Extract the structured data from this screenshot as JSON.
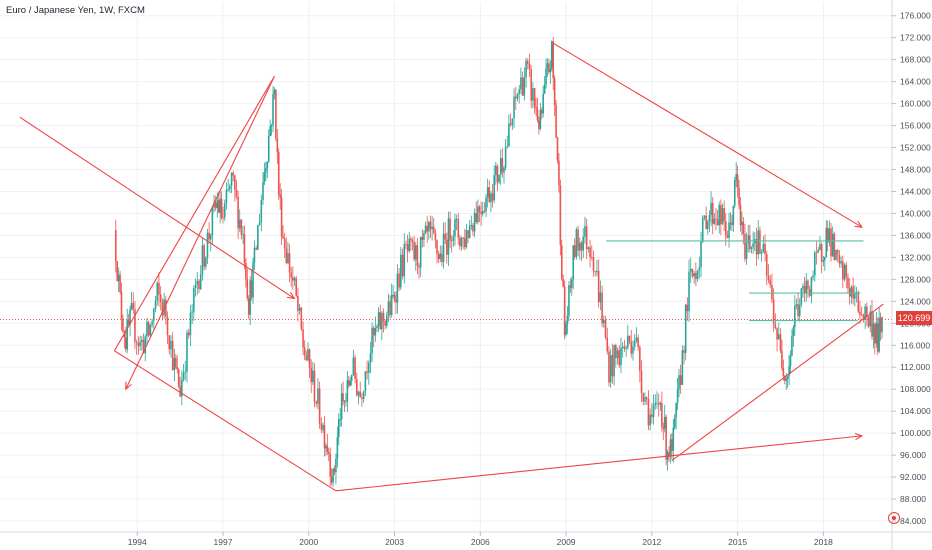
{
  "header": {
    "title": "Euro / Japanese Yen, 1W, FXCM"
  },
  "price_badge": {
    "value": "120.699"
  },
  "colors": {
    "up": "#26a69a",
    "down": "#ef5350",
    "drawing": "#ef4444",
    "axis_text": "#4a4f5c",
    "grid": "#eef0f3",
    "hline": "#5bbfa6"
  },
  "chart_data": {
    "type": "candlestick",
    "title": "Euro / Japanese Yen, 1W, FXCM",
    "xlim": [
      1989.2,
      2020.4
    ],
    "ylim": [
      82,
      178.5
    ],
    "y_ticks": [
      84,
      88,
      92,
      96,
      100,
      104,
      108,
      112,
      116,
      120,
      124,
      128,
      132,
      136,
      140,
      144,
      148,
      152,
      156,
      160,
      164,
      168,
      172,
      176
    ],
    "x_ticks": [
      1994,
      1997,
      2000,
      2003,
      2006,
      2009,
      2012,
      2015,
      2018
    ],
    "last_price": 120.699,
    "price_path": [
      [
        1993.2,
        137
      ],
      [
        1993.4,
        124
      ],
      [
        1993.6,
        117
      ],
      [
        1993.8,
        121
      ],
      [
        1994.1,
        116
      ],
      [
        1994.4,
        118
      ],
      [
        1994.7,
        125
      ],
      [
        1995.0,
        122
      ],
      [
        1995.3,
        112
      ],
      [
        1995.5,
        108
      ],
      [
        1995.8,
        118
      ],
      [
        1996.1,
        128
      ],
      [
        1996.4,
        134
      ],
      [
        1996.8,
        142
      ],
      [
        1997.0,
        139
      ],
      [
        1997.3,
        146
      ],
      [
        1997.7,
        136
      ],
      [
        1997.9,
        124
      ],
      [
        1998.1,
        131
      ],
      [
        1998.4,
        146
      ],
      [
        1998.6,
        154
      ],
      [
        1998.8,
        162
      ],
      [
        1998.95,
        144
      ],
      [
        1999.1,
        136
      ],
      [
        1999.5,
        126
      ],
      [
        1999.8,
        116
      ],
      [
        2000.2,
        108
      ],
      [
        2000.5,
        101
      ],
      [
        2000.7,
        97
      ],
      [
        2000.85,
        91
      ],
      [
        2001.1,
        104
      ],
      [
        2001.3,
        106
      ],
      [
        2001.5,
        112
      ],
      [
        2001.8,
        107
      ],
      [
        2002.1,
        115
      ],
      [
        2002.5,
        120
      ],
      [
        2002.9,
        123
      ],
      [
        2003.1,
        128
      ],
      [
        2003.4,
        133
      ],
      [
        2003.8,
        132
      ],
      [
        2004.2,
        136
      ],
      [
        2004.6,
        132
      ],
      [
        2005.0,
        138
      ],
      [
        2005.4,
        135
      ],
      [
        2005.8,
        140
      ],
      [
        2006.2,
        143
      ],
      [
        2006.6,
        147
      ],
      [
        2007.0,
        154
      ],
      [
        2007.3,
        162
      ],
      [
        2007.6,
        166
      ],
      [
        2007.9,
        160
      ],
      [
        2008.1,
        156
      ],
      [
        2008.3,
        164
      ],
      [
        2008.5,
        169
      ],
      [
        2008.7,
        150
      ],
      [
        2008.95,
        118
      ],
      [
        2009.1,
        124
      ],
      [
        2009.3,
        134
      ],
      [
        2009.6,
        136
      ],
      [
        2009.9,
        134
      ],
      [
        2010.2,
        124
      ],
      [
        2010.5,
        112
      ],
      [
        2010.8,
        114
      ],
      [
        2011.1,
        116
      ],
      [
        2011.4,
        118
      ],
      [
        2011.7,
        108
      ],
      [
        2012.0,
        102
      ],
      [
        2012.3,
        106
      ],
      [
        2012.5,
        98
      ],
      [
        2012.7,
        96
      ],
      [
        2012.95,
        108
      ],
      [
        2013.3,
        127
      ],
      [
        2013.6,
        131
      ],
      [
        2013.9,
        140
      ],
      [
        2014.3,
        140
      ],
      [
        2014.7,
        136
      ],
      [
        2014.95,
        146
      ],
      [
        2015.2,
        134
      ],
      [
        2015.6,
        136
      ],
      [
        2015.9,
        132
      ],
      [
        2016.2,
        124
      ],
      [
        2016.5,
        114
      ],
      [
        2016.75,
        111
      ],
      [
        2017.0,
        122
      ],
      [
        2017.4,
        126
      ],
      [
        2017.7,
        130
      ],
      [
        2018.0,
        134
      ],
      [
        2018.15,
        137
      ],
      [
        2018.5,
        130
      ],
      [
        2018.8,
        128
      ],
      [
        2019.1,
        124
      ],
      [
        2019.4,
        122
      ],
      [
        2019.7,
        120
      ],
      [
        2019.9,
        117
      ],
      [
        2020.05,
        120.7
      ]
    ],
    "drawings": {
      "trend_lines": [
        [
          [
            1989.9,
            157.5
          ],
          [
            1999.5,
            124.5
          ]
        ],
        [
          [
            1993.2,
            115.0
          ],
          [
            1998.8,
            165.0
          ]
        ],
        [
          [
            1998.8,
            165.0
          ],
          [
            1993.6,
            108.0
          ]
        ],
        [
          [
            1993.2,
            115.0
          ],
          [
            2000.95,
            89.5
          ]
        ],
        [
          [
            2000.95,
            89.5
          ],
          [
            2019.35,
            99.5
          ]
        ],
        [
          [
            2012.7,
            95.0
          ],
          [
            2020.1,
            123.5
          ]
        ],
        [
          [
            2008.55,
            171.0
          ],
          [
            2019.35,
            137.5
          ]
        ]
      ],
      "horizontal_lines": [
        [
          [
            2010.4,
            135.0
          ],
          [
            2019.4,
            135.0
          ]
        ],
        [
          [
            2015.4,
            125.5
          ],
          [
            2019.3,
            125.5
          ]
        ],
        [
          [
            2015.4,
            120.5
          ],
          [
            2019.2,
            120.5
          ]
        ]
      ]
    }
  }
}
